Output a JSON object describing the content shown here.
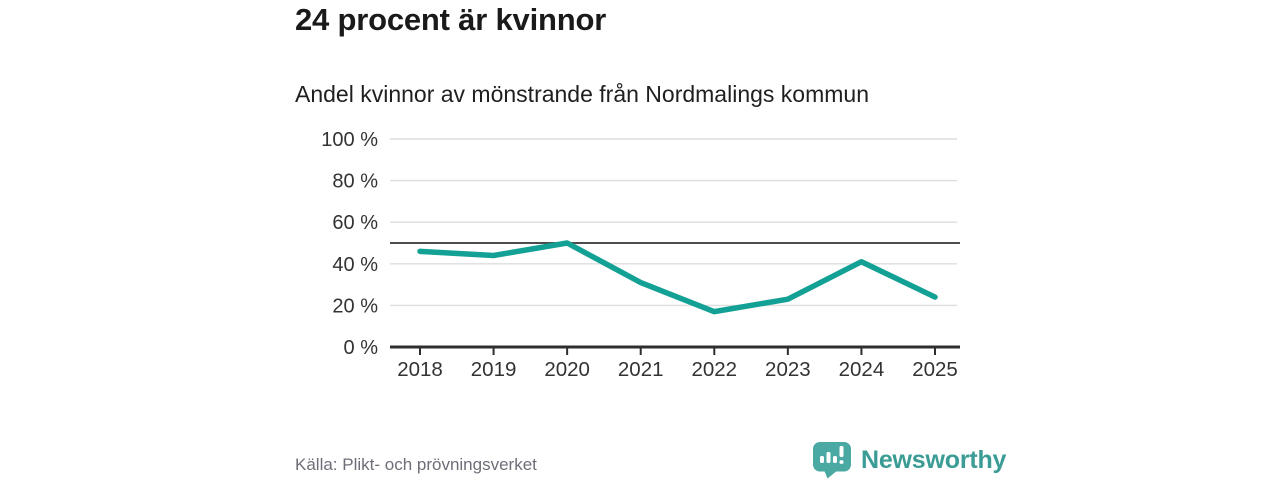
{
  "header": {
    "title": "24 procent är kvinnor",
    "subtitle": "Andel kvinnor av mönstrande från Nordmalings kommun"
  },
  "chart_data": {
    "type": "line",
    "title": "Andel kvinnor av mönstrande från Nordmalings kommun",
    "categories": [
      "2018",
      "2019",
      "2020",
      "2021",
      "2022",
      "2023",
      "2024",
      "2025"
    ],
    "values": [
      46,
      44,
      50,
      31,
      17,
      23,
      41,
      24
    ],
    "unit": "%",
    "xlabel": "",
    "ylabel": "",
    "ylim": [
      0,
      100
    ],
    "yticks": [
      0,
      20,
      40,
      60,
      80,
      100
    ],
    "ytick_suffix": " %",
    "reference_line": 50,
    "grid": "horizontal",
    "legend": "none"
  },
  "footer": {
    "source": "Källa: Plikt- och prövningsverket",
    "brand": "Newsworthy"
  },
  "colors": {
    "line": "#14a195",
    "reference_line": "#4d4d4d",
    "grid": "#dedede",
    "axis": "#2e2e2e",
    "tick_label": "#333333",
    "brand_icon": "#4aa9a2"
  }
}
